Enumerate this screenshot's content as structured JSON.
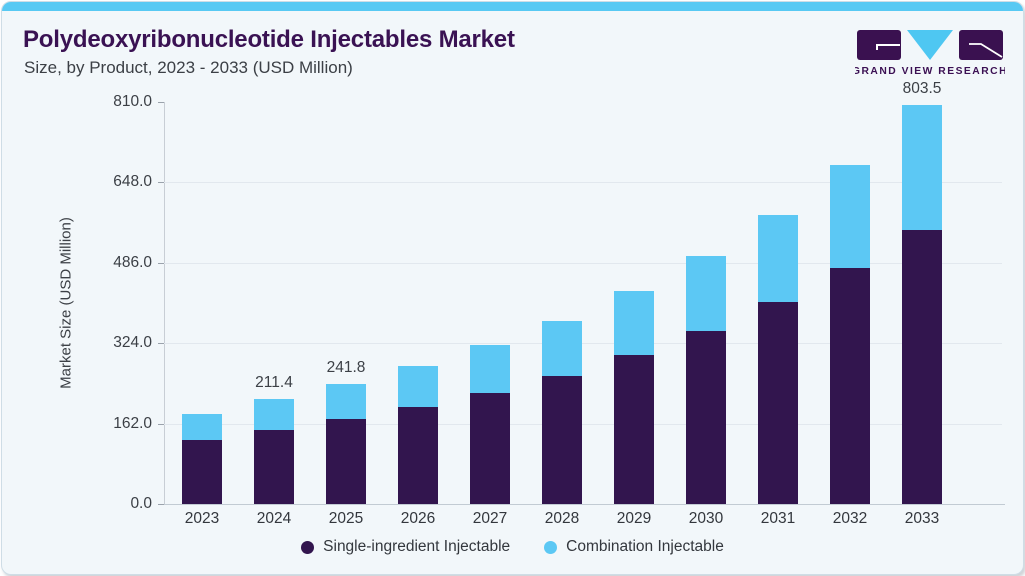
{
  "header": {
    "title": "Polydeoxyribonucleotide Injectables Market",
    "subtitle": "Size, by Product, 2023 - 2033 (USD Million)"
  },
  "logo": {
    "wordmark": "GRAND VIEW RESEARCH"
  },
  "colors": {
    "accent_strip_blue": "#58c9f3",
    "brand_purple": "#3a1253",
    "bar_single_ingredient": "#32154e",
    "bar_combination": "#5cc8f4",
    "card_background": "#f2f7fa"
  },
  "chart_data": {
    "type": "bar",
    "stacked": true,
    "title": "Polydeoxyribonucleotide Injectables Market Size, by Product, 2023 - 2033 (USD Million)",
    "xlabel": "",
    "ylabel": "Market Size (USD Million)",
    "ylim": [
      0,
      810
    ],
    "yticks": [
      0,
      162,
      324,
      486,
      648,
      810
    ],
    "ytick_labels": [
      "0.0",
      "162.0",
      "324.0",
      "486.0",
      "648.0",
      "810.0"
    ],
    "grid": "horizontal",
    "legend_position": "bottom",
    "categories": [
      "2023",
      "2024",
      "2025",
      "2026",
      "2027",
      "2028",
      "2029",
      "2030",
      "2031",
      "2032",
      "2033"
    ],
    "series": [
      {
        "name": "Single-ingredient Injectable",
        "color": "#32154e",
        "values": [
          128.0,
          148.7,
          170.5,
          195.3,
          224.5,
          258.8,
          299.6,
          348.4,
          406.1,
          474.9,
          552.1
        ]
      },
      {
        "name": "Combination Injectable",
        "color": "#5cc8f4",
        "values": [
          53.0,
          62.7,
          71.3,
          82.3,
          95.3,
          110.9,
          129.2,
          150.7,
          176.9,
          208.4,
          251.4
        ]
      }
    ],
    "totals": [
      181.0,
      211.4,
      241.8,
      277.6,
      319.8,
      369.7,
      428.8,
      499.1,
      583.0,
      683.3,
      803.5
    ],
    "total_labels": {
      "2024": "211.4",
      "2025": "241.8",
      "2033": "803.5"
    }
  }
}
